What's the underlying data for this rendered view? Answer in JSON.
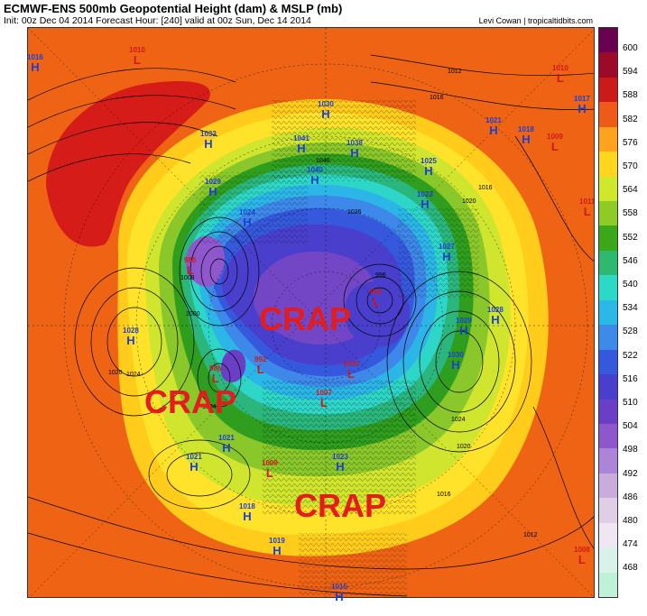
{
  "header": {
    "title": "ECMWF-ENS 500mb Geopotential Height (dam) & MSLP (mb)",
    "subtitle": "Init: 00z Dec 04 2014     Forecast Hour: [240]     valid at 00z Sun, Dec 14 2014",
    "credit": "Levi Cowan | tropicaltidbits.com"
  },
  "colorbar": {
    "labels": [
      "600",
      "594",
      "588",
      "582",
      "576",
      "570",
      "564",
      "558",
      "552",
      "546",
      "540",
      "534",
      "528",
      "522",
      "516",
      "510",
      "504",
      "498",
      "492",
      "486",
      "480",
      "474",
      "468"
    ],
    "colors": [
      "#6a0050",
      "#9c0a2a",
      "#cc1a1a",
      "#ee5a18",
      "#ffa21e",
      "#ffd61e",
      "#cfe82c",
      "#8ecb26",
      "#3aa818",
      "#2fb870",
      "#2ed8c6",
      "#2ab8e6",
      "#3d8ae8",
      "#3558dc",
      "#4a3fcc",
      "#6a3fc6",
      "#8e58cc",
      "#ad85d8",
      "#c9acdc",
      "#e0cee6",
      "#eee6f0",
      "#d8f2ea",
      "#bff0d8"
    ]
  },
  "pressure_systems": [
    {
      "type": "H",
      "value": "1016"
    },
    {
      "type": "L",
      "value": "1010"
    },
    {
      "type": "H",
      "value": "1033"
    },
    {
      "type": "H",
      "value": "1030"
    },
    {
      "type": "H",
      "value": "1041"
    },
    {
      "type": "H",
      "value": "1038"
    },
    {
      "type": "H",
      "value": "1040"
    },
    {
      "type": "H",
      "value": "1025"
    },
    {
      "type": "H",
      "value": "1029"
    },
    {
      "type": "H",
      "value": "1023"
    },
    {
      "type": "H",
      "value": "1024"
    },
    {
      "type": "H",
      "value": "1021"
    },
    {
      "type": "H",
      "value": "1018"
    },
    {
      "type": "L",
      "value": "1010"
    },
    {
      "type": "H",
      "value": "1017"
    },
    {
      "type": "L",
      "value": "1009"
    },
    {
      "type": "L",
      "value": "986"
    },
    {
      "type": "L",
      "value": "992"
    },
    {
      "type": "H",
      "value": "1027"
    },
    {
      "type": "H",
      "value": "1028"
    },
    {
      "type": "H",
      "value": "1029"
    },
    {
      "type": "H",
      "value": "1028"
    },
    {
      "type": "H",
      "value": "1030"
    },
    {
      "type": "L",
      "value": "986"
    },
    {
      "type": "L",
      "value": "992"
    },
    {
      "type": "L",
      "value": "1005"
    },
    {
      "type": "L",
      "value": "1007"
    },
    {
      "type": "H",
      "value": "1021"
    },
    {
      "type": "H",
      "value": "1021"
    },
    {
      "type": "L",
      "value": "1009"
    },
    {
      "type": "H",
      "value": "1023"
    },
    {
      "type": "H",
      "value": "1018"
    },
    {
      "type": "H",
      "value": "1019"
    },
    {
      "type": "H",
      "value": "1015"
    },
    {
      "type": "L",
      "value": "1008"
    },
    {
      "type": "L",
      "value": "1011"
    }
  ],
  "contour_labels": [
    "1012",
    "1016",
    "1020",
    "1024",
    "1008",
    "1004",
    "1000",
    "996",
    "1036",
    "1040",
    "1016",
    "1020",
    "1024",
    "1020",
    "1016",
    "1012"
  ],
  "annotations": [
    "CRAP",
    "CRAP",
    "CRAP"
  ]
}
